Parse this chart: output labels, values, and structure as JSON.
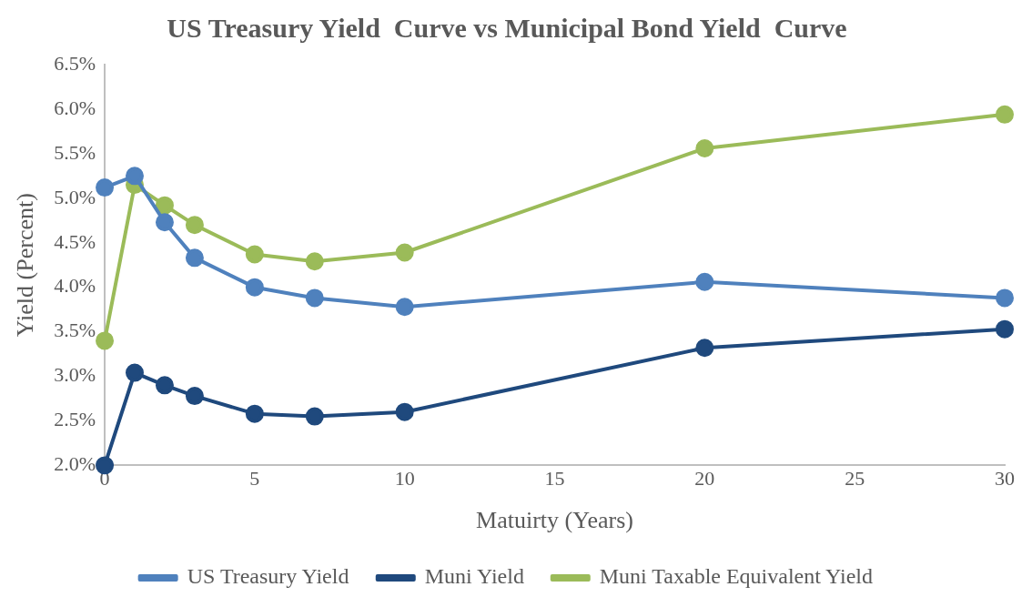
{
  "chart_data": {
    "type": "line",
    "title": "US Treasury Yield  Curve vs Municipal Bond Yield  Curve",
    "xlabel": "Matuirty (Years)",
    "ylabel": "Yield (Percent)",
    "x": [
      0,
      1,
      2,
      3,
      5,
      7,
      10,
      20,
      30
    ],
    "series": [
      {
        "name": "US Treasury Yield",
        "color": "#4f81bd",
        "values": [
          5.12,
          5.25,
          4.73,
          4.33,
          4.0,
          3.88,
          3.78,
          4.06,
          3.88
        ]
      },
      {
        "name": "Muni Yield",
        "color": "#1f497d",
        "values": [
          2.0,
          3.04,
          2.9,
          2.78,
          2.58,
          2.55,
          2.6,
          3.32,
          3.53
        ]
      },
      {
        "name": "Muni Taxable Equivalent Yield",
        "color": "#9bbb59",
        "values": [
          3.4,
          5.15,
          4.92,
          4.7,
          4.37,
          4.29,
          4.39,
          5.56,
          5.94
        ]
      }
    ],
    "xlim": [
      0,
      30
    ],
    "xticks": [
      0,
      5,
      10,
      15,
      20,
      25,
      30
    ],
    "ylim": [
      2.0,
      6.5
    ],
    "yticks": [
      {
        "value": 2.0,
        "label": "2.0%"
      },
      {
        "value": 2.5,
        "label": "2.5%"
      },
      {
        "value": 3.0,
        "label": "3.0%"
      },
      {
        "value": 3.5,
        "label": "3.5%"
      },
      {
        "value": 4.0,
        "label": "4.0%"
      },
      {
        "value": 4.5,
        "label": "4.5%"
      },
      {
        "value": 5.0,
        "label": "5.0%"
      },
      {
        "value": 5.5,
        "label": "5.5%"
      },
      {
        "value": 6.0,
        "label": "6.0%"
      },
      {
        "value": 6.5,
        "label": "6.5%"
      }
    ],
    "grid": false,
    "legend": "bottom",
    "marker": "circle",
    "line_style": "solid"
  }
}
